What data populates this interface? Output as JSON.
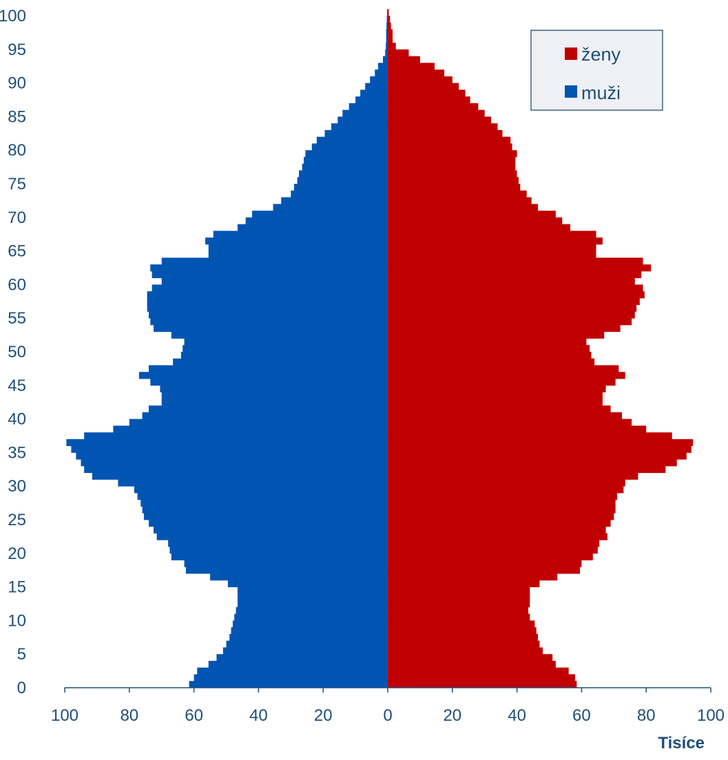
{
  "chart_data": {
    "type": "bar",
    "orientation": "horizontal",
    "layout": "population-pyramid",
    "x_unit_label": "Tisíce",
    "xlim": [
      -100,
      100
    ],
    "x_ticks": [
      -100,
      -80,
      -60,
      -40,
      -20,
      0,
      20,
      40,
      60,
      80,
      100
    ],
    "x_tick_labels": [
      "100",
      "80",
      "60",
      "40",
      "20",
      "0",
      "20",
      "40",
      "60",
      "80",
      "100"
    ],
    "ylim": [
      0,
      100
    ],
    "y_ticks": [
      0,
      5,
      10,
      15,
      20,
      25,
      30,
      35,
      40,
      45,
      50,
      55,
      60,
      65,
      70,
      75,
      80,
      85,
      90,
      95,
      100
    ],
    "y_tick_labels": [
      "0",
      "5",
      "10",
      "15",
      "20",
      "25",
      "30",
      "35",
      "40",
      "45",
      "50",
      "55",
      "60",
      "65",
      "70",
      "75",
      "80",
      "85",
      "90",
      "95",
      "100"
    ],
    "categories": [
      0,
      1,
      2,
      3,
      4,
      5,
      6,
      7,
      8,
      9,
      10,
      11,
      12,
      13,
      14,
      15,
      16,
      17,
      18,
      19,
      20,
      21,
      22,
      23,
      24,
      25,
      26,
      27,
      28,
      29,
      30,
      31,
      32,
      33,
      34,
      35,
      36,
      37,
      38,
      39,
      40,
      41,
      42,
      43,
      44,
      45,
      46,
      47,
      48,
      49,
      50,
      51,
      52,
      53,
      54,
      55,
      56,
      57,
      58,
      59,
      60,
      61,
      62,
      63,
      64,
      65,
      66,
      67,
      68,
      69,
      70,
      71,
      72,
      73,
      74,
      75,
      76,
      77,
      78,
      79,
      80,
      81,
      82,
      83,
      84,
      85,
      86,
      87,
      88,
      89,
      90,
      91,
      92,
      93,
      94,
      95,
      96,
      97,
      98,
      99,
      100
    ],
    "grid": false,
    "legend_position": "top-right",
    "series": [
      {
        "name": "ženy",
        "side": "right",
        "color": "#c00000",
        "values": [
          58.5,
          58,
          56,
          52,
          51,
          48,
          47,
          46.5,
          46,
          45.5,
          44,
          43.5,
          44,
          44,
          44,
          47,
          52.5,
          59.5,
          60,
          63.5,
          65,
          65.5,
          68,
          67.5,
          69,
          70,
          70.5,
          70.5,
          71,
          73,
          73.5,
          77.5,
          86,
          89.5,
          92.5,
          94,
          94.5,
          88,
          80,
          75.5,
          72.5,
          69,
          66.5,
          66.5,
          67.5,
          70.5,
          73.5,
          71.5,
          64,
          63,
          62.5,
          61.5,
          67,
          72,
          75.5,
          76.5,
          77,
          78,
          79.5,
          79,
          76.5,
          78.5,
          81.5,
          79,
          64.5,
          64.5,
          66.5,
          64.5,
          56.5,
          54,
          52,
          46.5,
          44.5,
          43,
          41,
          40.5,
          40,
          39.5,
          39.5,
          40,
          38.5,
          38,
          35.5,
          34,
          32,
          30,
          28,
          25.5,
          24,
          22,
          20,
          17.5,
          14.5,
          10,
          6.5,
          2.5,
          1.5,
          1.5,
          1,
          0.7,
          0.3
        ]
      },
      {
        "name": "muži",
        "side": "left",
        "color": "#0055b3",
        "values": [
          61.5,
          60,
          59,
          55.5,
          53,
          51,
          50,
          49,
          48.5,
          48,
          47.5,
          47,
          46.5,
          46.5,
          46.5,
          49.5,
          55,
          62.5,
          63,
          67,
          67.5,
          68,
          71.5,
          72.5,
          74,
          75.5,
          76,
          76.5,
          77.5,
          78.5,
          83.5,
          91.5,
          94,
          95,
          96.5,
          98,
          99.5,
          94,
          85,
          80,
          76,
          74,
          70,
          70,
          70.5,
          73.5,
          77,
          74,
          66.5,
          64,
          63.5,
          63,
          67,
          72.5,
          73.5,
          74,
          74.5,
          74.5,
          74.5,
          73,
          70,
          73,
          73.5,
          70,
          55.5,
          55.5,
          56.5,
          54,
          46.5,
          44,
          42,
          35.5,
          33,
          30,
          29,
          28,
          27.5,
          26.5,
          26,
          25.5,
          23.5,
          22,
          19.5,
          17.5,
          15.5,
          14,
          12,
          10,
          8.5,
          7,
          5.5,
          4,
          3,
          1.5,
          0.8,
          0.6,
          0.5,
          0.5,
          0.4,
          0.3,
          0.2
        ]
      }
    ]
  }
}
